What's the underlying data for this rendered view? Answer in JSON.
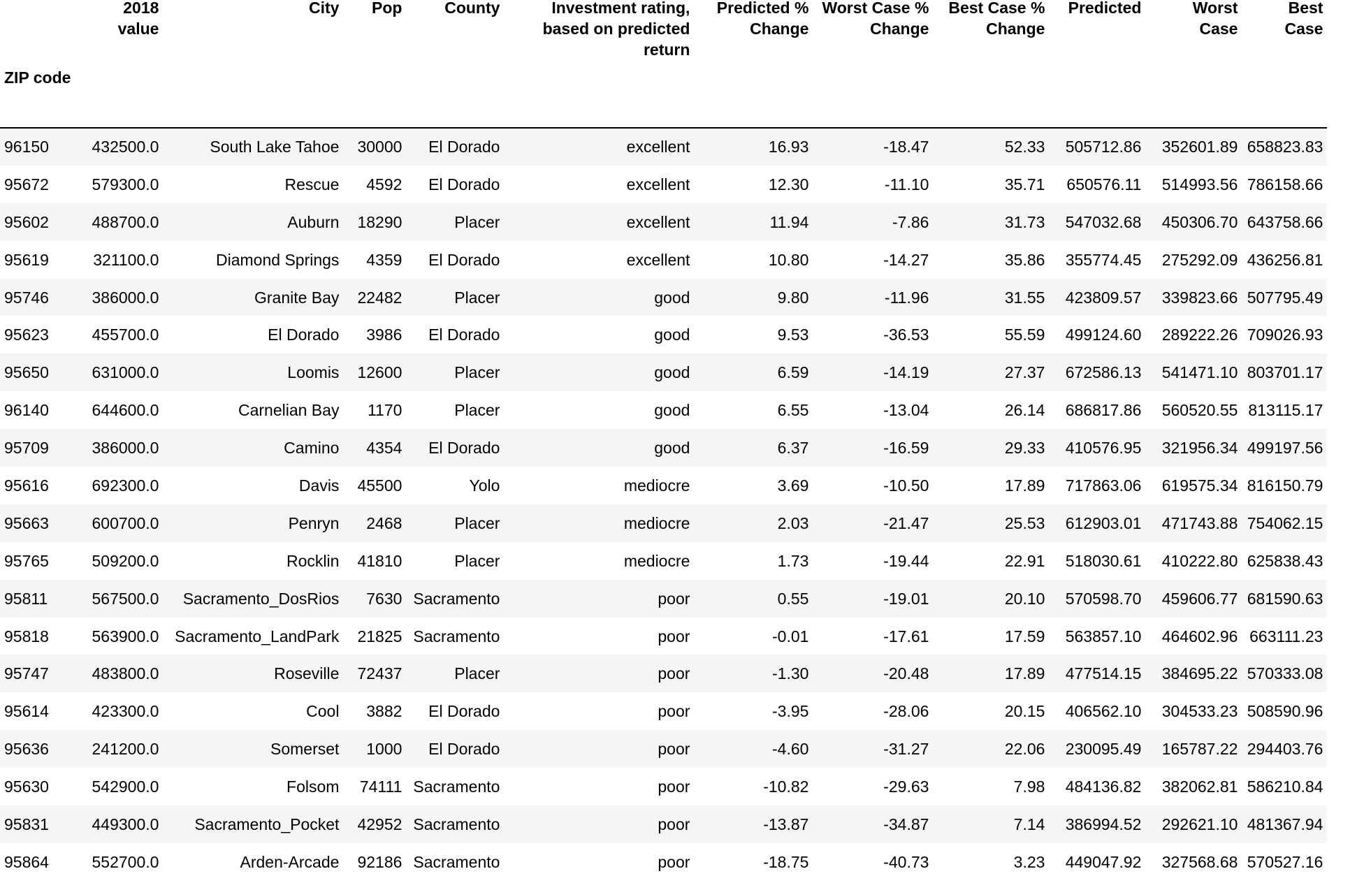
{
  "table": {
    "index_name": "ZIP code",
    "columns": [
      "2018 value",
      "City",
      "Pop",
      "County",
      "Investment rating, based on predicted return",
      "Predicted % Change",
      "Worst Case % Change",
      "Best Case % Change",
      "Predicted",
      "Worst Case",
      "Best Case"
    ],
    "rows": [
      {
        "zip": "96150",
        "cells": [
          "432500.0",
          "South Lake Tahoe",
          "30000",
          "El Dorado",
          "excellent",
          "16.93",
          "-18.47",
          "52.33",
          "505712.86",
          "352601.89",
          "658823.83"
        ]
      },
      {
        "zip": "95672",
        "cells": [
          "579300.0",
          "Rescue",
          "4592",
          "El Dorado",
          "excellent",
          "12.30",
          "-11.10",
          "35.71",
          "650576.11",
          "514993.56",
          "786158.66"
        ]
      },
      {
        "zip": "95602",
        "cells": [
          "488700.0",
          "Auburn",
          "18290",
          "Placer",
          "excellent",
          "11.94",
          "-7.86",
          "31.73",
          "547032.68",
          "450306.70",
          "643758.66"
        ]
      },
      {
        "zip": "95619",
        "cells": [
          "321100.0",
          "Diamond Springs",
          "4359",
          "El Dorado",
          "excellent",
          "10.80",
          "-14.27",
          "35.86",
          "355774.45",
          "275292.09",
          "436256.81"
        ]
      },
      {
        "zip": "95746",
        "cells": [
          "386000.0",
          "Granite Bay",
          "22482",
          "Placer",
          "good",
          "9.80",
          "-11.96",
          "31.55",
          "423809.57",
          "339823.66",
          "507795.49"
        ]
      },
      {
        "zip": "95623",
        "cells": [
          "455700.0",
          "El Dorado",
          "3986",
          "El Dorado",
          "good",
          "9.53",
          "-36.53",
          "55.59",
          "499124.60",
          "289222.26",
          "709026.93"
        ]
      },
      {
        "zip": "95650",
        "cells": [
          "631000.0",
          "Loomis",
          "12600",
          "Placer",
          "good",
          "6.59",
          "-14.19",
          "27.37",
          "672586.13",
          "541471.10",
          "803701.17"
        ]
      },
      {
        "zip": "96140",
        "cells": [
          "644600.0",
          "Carnelian Bay",
          "1170",
          "Placer",
          "good",
          "6.55",
          "-13.04",
          "26.14",
          "686817.86",
          "560520.55",
          "813115.17"
        ]
      },
      {
        "zip": "95709",
        "cells": [
          "386000.0",
          "Camino",
          "4354",
          "El Dorado",
          "good",
          "6.37",
          "-16.59",
          "29.33",
          "410576.95",
          "321956.34",
          "499197.56"
        ]
      },
      {
        "zip": "95616",
        "cells": [
          "692300.0",
          "Davis",
          "45500",
          "Yolo",
          "mediocre",
          "3.69",
          "-10.50",
          "17.89",
          "717863.06",
          "619575.34",
          "816150.79"
        ]
      },
      {
        "zip": "95663",
        "cells": [
          "600700.0",
          "Penryn",
          "2468",
          "Placer",
          "mediocre",
          "2.03",
          "-21.47",
          "25.53",
          "612903.01",
          "471743.88",
          "754062.15"
        ]
      },
      {
        "zip": "95765",
        "cells": [
          "509200.0",
          "Rocklin",
          "41810",
          "Placer",
          "mediocre",
          "1.73",
          "-19.44",
          "22.91",
          "518030.61",
          "410222.80",
          "625838.43"
        ]
      },
      {
        "zip": "95811",
        "cells": [
          "567500.0",
          "Sacramento_DosRios",
          "7630",
          "Sacramento",
          "poor",
          "0.55",
          "-19.01",
          "20.10",
          "570598.70",
          "459606.77",
          "681590.63"
        ]
      },
      {
        "zip": "95818",
        "cells": [
          "563900.0",
          "Sacramento_LandPark",
          "21825",
          "Sacramento",
          "poor",
          "-0.01",
          "-17.61",
          "17.59",
          "563857.10",
          "464602.96",
          "663111.23"
        ]
      },
      {
        "zip": "95747",
        "cells": [
          "483800.0",
          "Roseville",
          "72437",
          "Placer",
          "poor",
          "-1.30",
          "-20.48",
          "17.89",
          "477514.15",
          "384695.22",
          "570333.08"
        ]
      },
      {
        "zip": "95614",
        "cells": [
          "423300.0",
          "Cool",
          "3882",
          "El Dorado",
          "poor",
          "-3.95",
          "-28.06",
          "20.15",
          "406562.10",
          "304533.23",
          "508590.96"
        ]
      },
      {
        "zip": "95636",
        "cells": [
          "241200.0",
          "Somerset",
          "1000",
          "El Dorado",
          "poor",
          "-4.60",
          "-31.27",
          "22.06",
          "230095.49",
          "165787.22",
          "294403.76"
        ]
      },
      {
        "zip": "95630",
        "cells": [
          "542900.0",
          "Folsom",
          "74111",
          "Sacramento",
          "poor",
          "-10.82",
          "-29.63",
          "7.98",
          "484136.82",
          "382062.81",
          "586210.84"
        ]
      },
      {
        "zip": "95831",
        "cells": [
          "449300.0",
          "Sacramento_Pocket",
          "42952",
          "Sacramento",
          "poor",
          "-13.87",
          "-34.87",
          "7.14",
          "386994.52",
          "292621.10",
          "481367.94"
        ]
      },
      {
        "zip": "95864",
        "cells": [
          "552700.0",
          "Arden-Arcade",
          "92186",
          "Sacramento",
          "poor",
          "-18.75",
          "-40.73",
          "3.23",
          "449047.92",
          "327568.68",
          "570527.16"
        ]
      }
    ]
  }
}
